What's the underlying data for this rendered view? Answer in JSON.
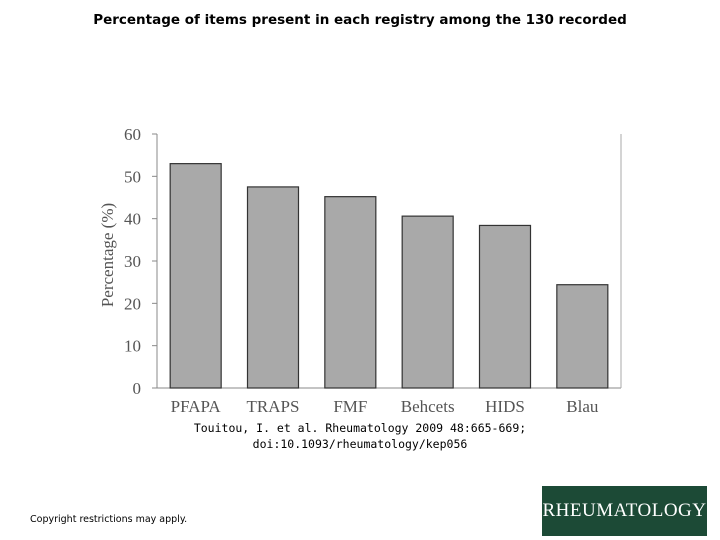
{
  "slide": {
    "title": "Percentage of items present in each registry among the 130 recorded",
    "citation_line1": "Touitou, I. et al. Rheumatology 2009 48:665-669;",
    "citation_line2": "doi:10.1093/rheumatology/kep056",
    "copyright": "Copyright restrictions may apply.",
    "logo_text": "RHEUMATOLOGY",
    "colors": {
      "bar_fill": "#a9a9a9",
      "bar_stroke": "#333333",
      "logo_bg": "#1c4a36"
    }
  },
  "chart_data": {
    "type": "bar",
    "title": "",
    "xlabel": "",
    "ylabel": "Percentage (%)",
    "categories": [
      "PFAPA",
      "TRAPS",
      "FMF",
      "Behcets",
      "HIDS",
      "Blau"
    ],
    "values": [
      53,
      47.5,
      45.2,
      40.6,
      38.4,
      24.4
    ],
    "ylim": [
      0,
      60
    ],
    "yticks": [
      0,
      10,
      20,
      30,
      40,
      50,
      60
    ],
    "grid": false
  }
}
